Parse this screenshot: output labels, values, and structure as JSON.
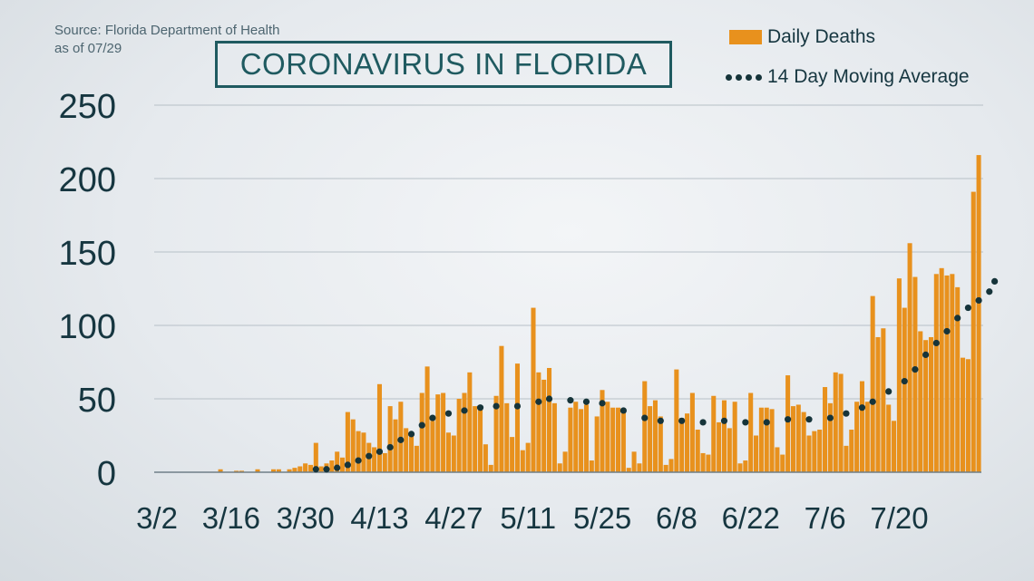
{
  "source": {
    "line1": "Source: Florida Department of Health",
    "line2": "as of 07/29"
  },
  "title": "CORONAVIRUS IN FLORIDA",
  "legend": {
    "bars_label": "Daily Deaths",
    "line_label": "14 Day Moving Average"
  },
  "colors": {
    "bar": "#e8911d",
    "dots": "#16343a",
    "axis_text": "#163640",
    "grid": "#b7c0c7",
    "title": "#1f5a60"
  },
  "chart_data": {
    "type": "bar",
    "start_date": "3/2",
    "end_date": "7/29",
    "xticks": [
      "3/2",
      "3/16",
      "3/30",
      "4/13",
      "4/27",
      "5/11",
      "5/25",
      "6/8",
      "6/22",
      "7/6",
      "7/20"
    ],
    "yticks": [
      0,
      50,
      100,
      150,
      200,
      250
    ],
    "ylim": [
      0,
      250
    ],
    "grid": true,
    "series": [
      {
        "name": "Daily Deaths",
        "kind": "bar",
        "values": [
          0,
          0,
          0,
          0,
          0,
          0,
          0,
          0,
          0,
          0,
          0,
          0,
          2,
          0,
          0,
          1,
          1,
          0,
          0,
          2,
          0,
          0,
          2,
          2,
          0,
          2,
          3,
          4,
          6,
          5,
          20,
          4,
          6,
          8,
          14,
          10,
          41,
          36,
          28,
          27,
          20,
          17,
          60,
          13,
          45,
          36,
          48,
          30,
          27,
          18,
          54,
          72,
          35,
          53,
          54,
          27,
          25,
          50,
          54,
          68,
          45,
          43,
          19,
          5,
          52,
          86,
          47,
          24,
          74,
          15,
          20,
          112,
          68,
          63,
          71,
          47,
          6,
          14,
          44,
          48,
          43,
          46,
          8,
          38,
          56,
          48,
          44,
          44,
          41,
          3,
          14,
          6,
          62,
          45,
          49,
          38,
          5,
          9,
          70,
          37,
          40,
          54,
          29,
          13,
          12,
          52,
          34,
          49,
          30,
          48,
          6,
          8,
          54,
          25,
          44,
          44,
          43,
          17,
          12,
          66,
          45,
          46,
          41,
          25,
          28,
          29,
          58,
          47,
          68,
          67,
          18,
          29,
          48,
          62,
          48,
          120,
          92,
          98,
          46,
          35,
          132,
          112,
          156,
          133,
          96,
          90,
          92,
          135,
          139,
          134,
          135,
          126,
          78,
          77,
          191,
          216
        ]
      },
      {
        "name": "14 Day Moving Average",
        "kind": "dots",
        "points": [
          {
            "x": 30,
            "y": 2
          },
          {
            "x": 32,
            "y": 2
          },
          {
            "x": 34,
            "y": 3
          },
          {
            "x": 36,
            "y": 5
          },
          {
            "x": 38,
            "y": 8
          },
          {
            "x": 40,
            "y": 11
          },
          {
            "x": 42,
            "y": 14
          },
          {
            "x": 44,
            "y": 17
          },
          {
            "x": 46,
            "y": 22
          },
          {
            "x": 48,
            "y": 26
          },
          {
            "x": 50,
            "y": 32
          },
          {
            "x": 52,
            "y": 37
          },
          {
            "x": 55,
            "y": 40
          },
          {
            "x": 58,
            "y": 42
          },
          {
            "x": 61,
            "y": 44
          },
          {
            "x": 64,
            "y": 45
          },
          {
            "x": 68,
            "y": 45
          },
          {
            "x": 72,
            "y": 48
          },
          {
            "x": 74,
            "y": 50
          },
          {
            "x": 78,
            "y": 49
          },
          {
            "x": 81,
            "y": 48
          },
          {
            "x": 84,
            "y": 47
          },
          {
            "x": 88,
            "y": 42
          },
          {
            "x": 92,
            "y": 37
          },
          {
            "x": 95,
            "y": 35
          },
          {
            "x": 99,
            "y": 35
          },
          {
            "x": 103,
            "y": 34
          },
          {
            "x": 107,
            "y": 35
          },
          {
            "x": 111,
            "y": 34
          },
          {
            "x": 115,
            "y": 34
          },
          {
            "x": 119,
            "y": 36
          },
          {
            "x": 123,
            "y": 36
          },
          {
            "x": 127,
            "y": 37
          },
          {
            "x": 130,
            "y": 40
          },
          {
            "x": 133,
            "y": 44
          },
          {
            "x": 135,
            "y": 48
          },
          {
            "x": 138,
            "y": 55
          },
          {
            "x": 141,
            "y": 62
          },
          {
            "x": 143,
            "y": 70
          },
          {
            "x": 145,
            "y": 80
          },
          {
            "x": 147,
            "y": 88
          },
          {
            "x": 149,
            "y": 96
          },
          {
            "x": 151,
            "y": 105
          },
          {
            "x": 153,
            "y": 112
          },
          {
            "x": 155,
            "y": 117
          },
          {
            "x": 157,
            "y": 123
          },
          {
            "x": 158,
            "y": 130
          }
        ]
      }
    ]
  }
}
